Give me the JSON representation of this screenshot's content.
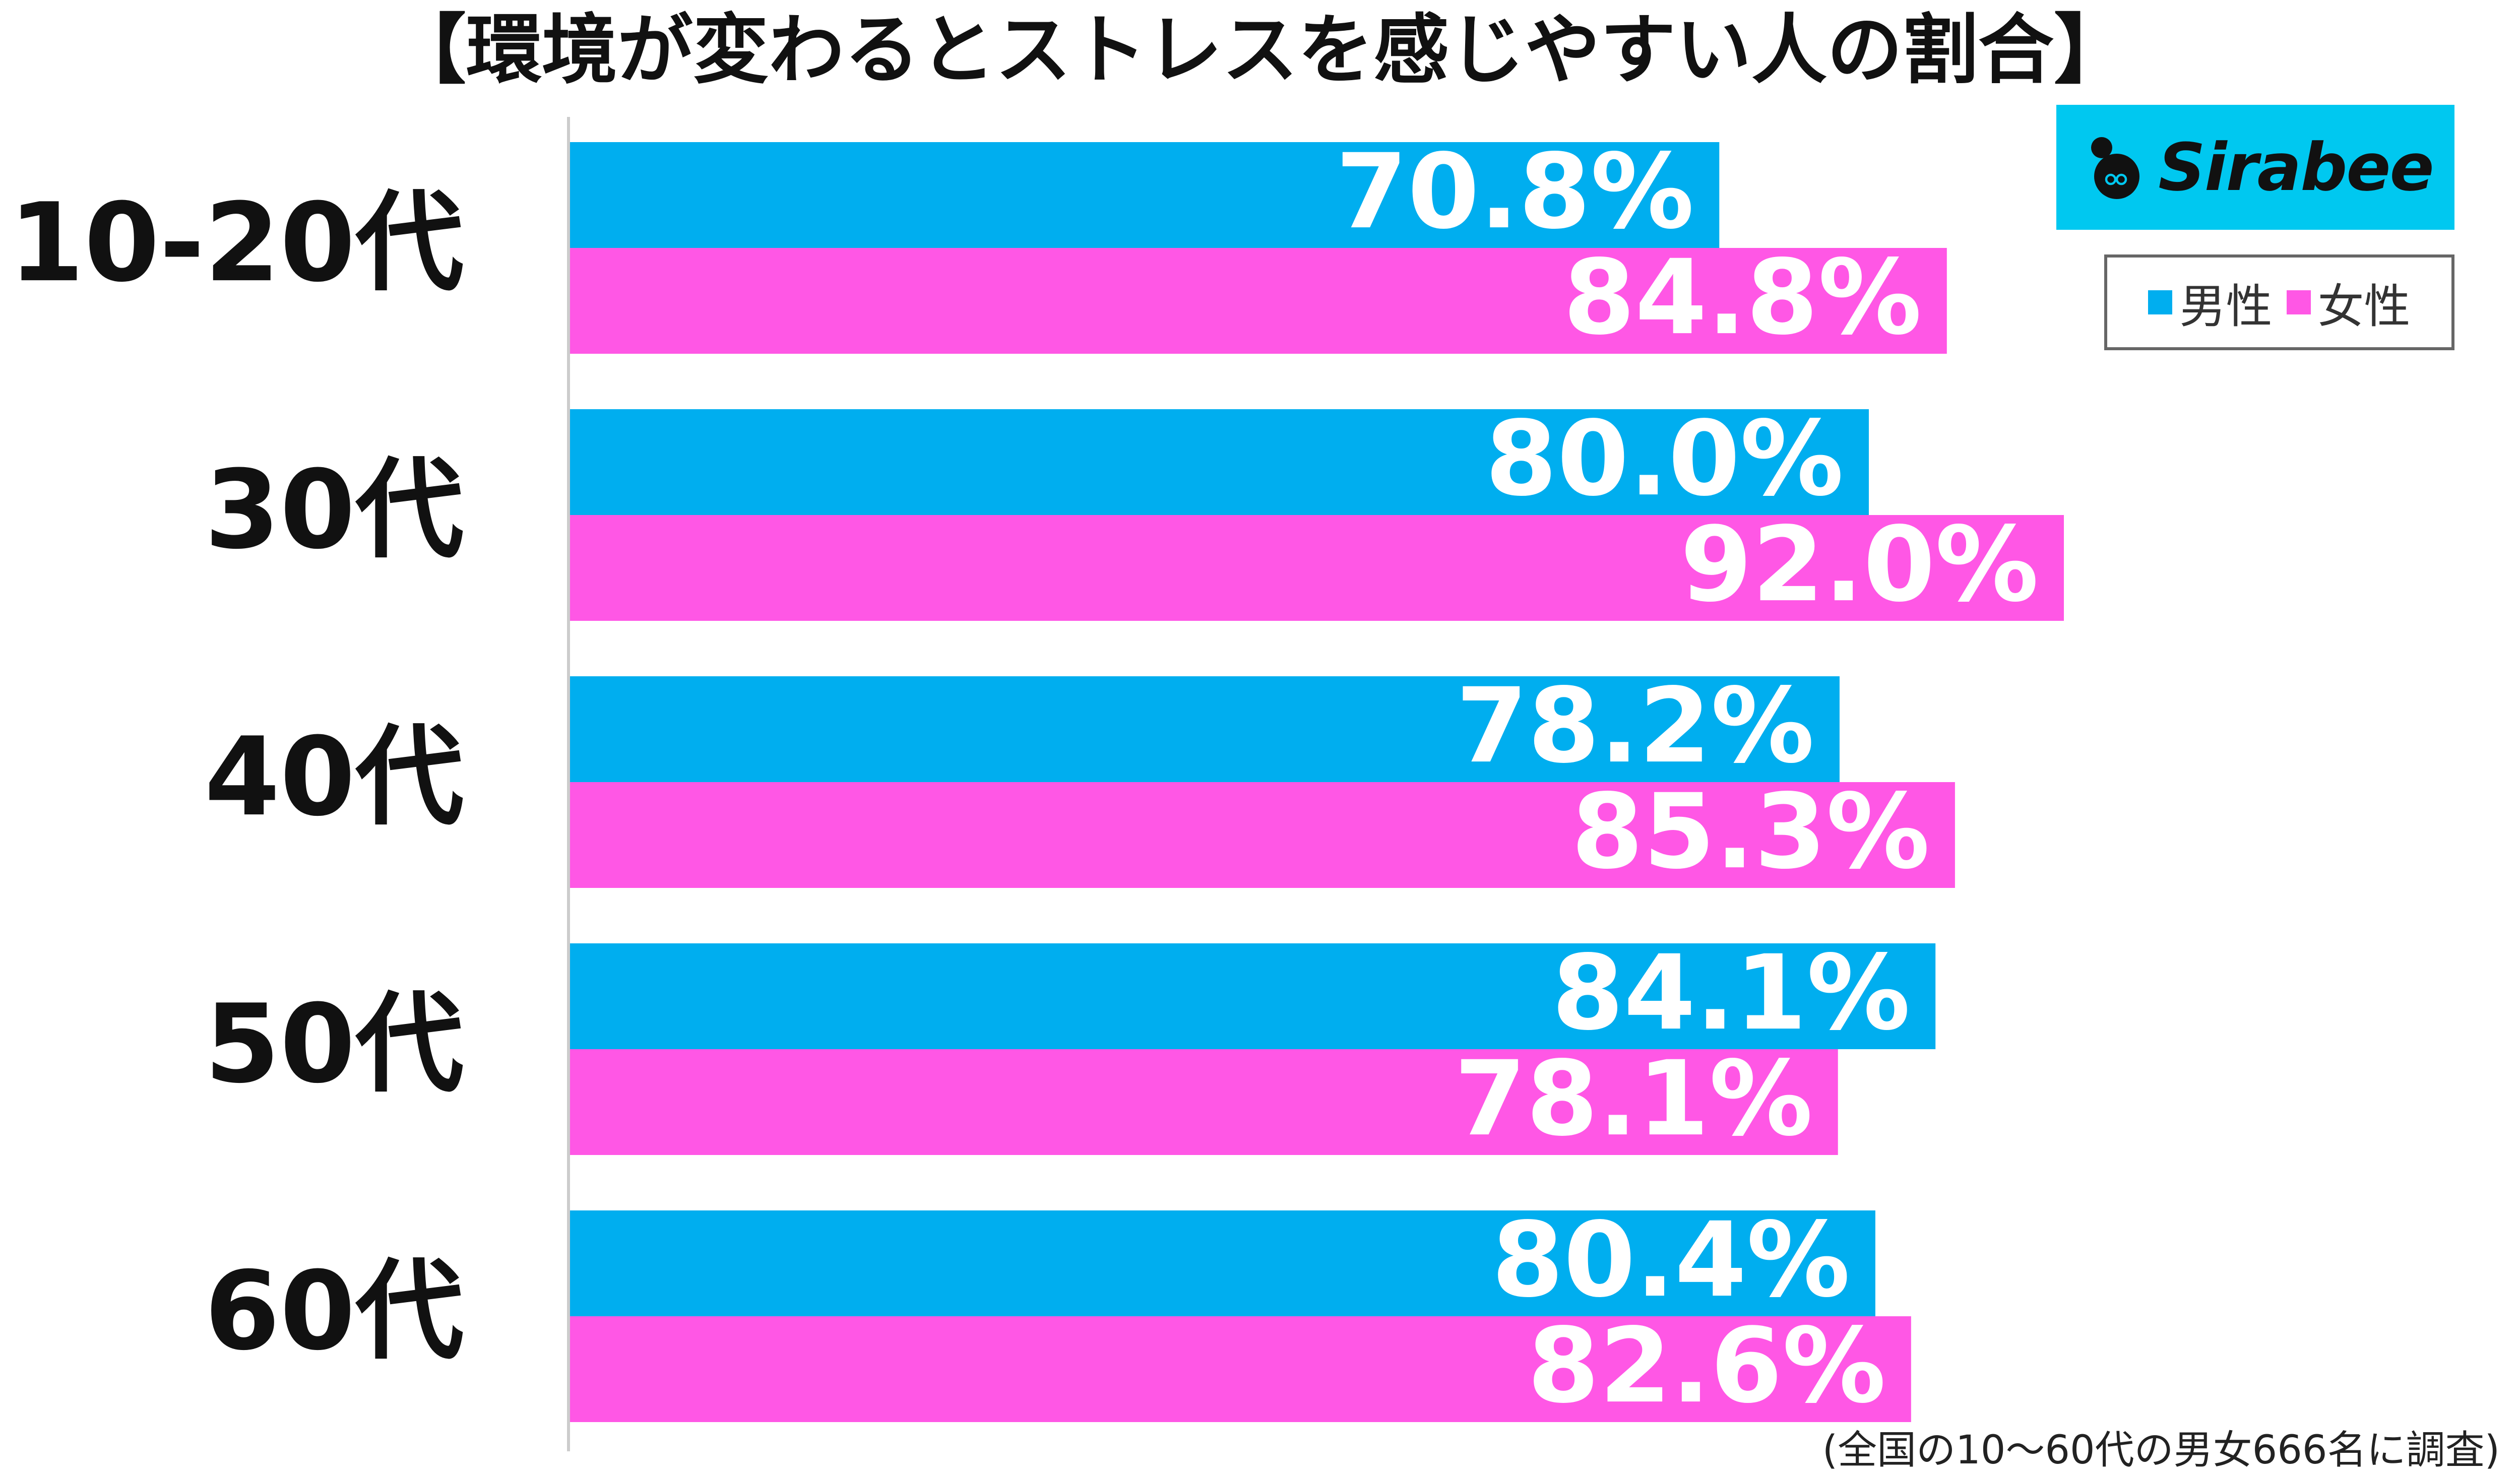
{
  "title": "【環境が変わるとストレスを感じやすい人の割合】",
  "logo": {
    "text": "Sirabee",
    "icon": "sirabee-logo-icon"
  },
  "footnote": "(全国の10～60代の男女666名に調査)",
  "colors": {
    "male": "#00aeef",
    "female": "#ff57e5",
    "axis": "#cccccc",
    "category_text": "#111111",
    "value_text": "#ffffff"
  },
  "chart_data": {
    "type": "bar",
    "orientation": "horizontal",
    "categories": [
      "10-20代",
      "30代",
      "40代",
      "50代",
      "60代"
    ],
    "series": [
      {
        "name": "男性",
        "values": [
          70.8,
          80.0,
          78.2,
          84.1,
          80.4
        ],
        "labels": [
          "70.8%",
          "80.0%",
          "78.2%",
          "84.1%",
          "80.4%"
        ]
      },
      {
        "name": "女性",
        "values": [
          84.8,
          92.0,
          85.3,
          78.1,
          82.6
        ],
        "labels": [
          "84.8%",
          "92.0%",
          "85.3%",
          "78.1%",
          "82.6%"
        ]
      }
    ],
    "xlim": [
      0,
      100
    ],
    "grid": false,
    "legend": "top-right"
  }
}
